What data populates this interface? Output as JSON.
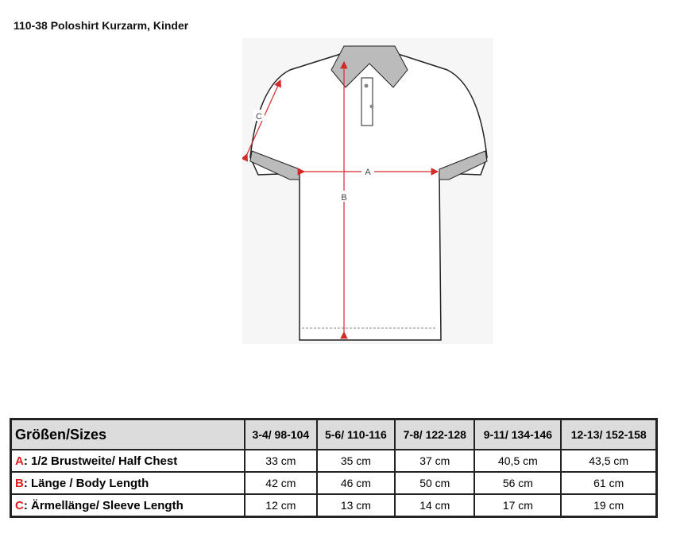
{
  "title": "110-38 Poloshirt Kurzarm, Kinder",
  "diagram": {
    "labels": {
      "a": "A",
      "b": "B",
      "c": "C"
    },
    "arrow_color": "#d42a2a"
  },
  "table": {
    "header": "Größen/Sizes",
    "sizes": [
      "3-4/ 98-104",
      "5-6/ 110-116",
      "7-8/ 122-128",
      "9-11/ 134-146",
      "12-13/ 152-158"
    ],
    "rows": [
      {
        "key": "A",
        "label": ": 1/2 Brustweite/ Half Chest",
        "values": [
          "33 cm",
          "35 cm",
          "37 cm",
          "40,5 cm",
          "43,5 cm"
        ]
      },
      {
        "key": "B",
        "label": ": Länge / Body Length",
        "values": [
          "42 cm",
          "46 cm",
          "50 cm",
          "56 cm",
          "61 cm"
        ]
      },
      {
        "key": "C",
        "label": ": Ärmellänge/ Sleeve Length",
        "values": [
          "12 cm",
          "13 cm",
          "14 cm",
          "17 cm",
          "19 cm"
        ]
      }
    ]
  }
}
